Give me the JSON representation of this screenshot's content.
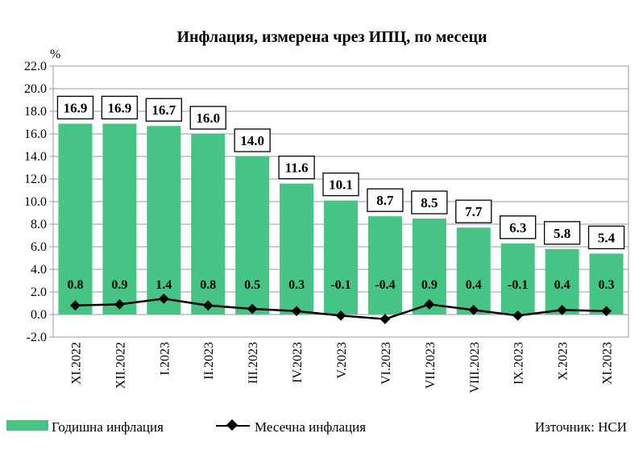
{
  "chart_data": {
    "type": "bar",
    "title": "Инфлация, измерена чрез ИПЦ, по месеци",
    "ylabel": "%",
    "ylim": [
      -2.0,
      22.0
    ],
    "yticks": [
      "22.0",
      "20.0",
      "18.0",
      "16.0",
      "14.0",
      "12.0",
      "10.0",
      "8.0",
      "6.0",
      "4.0",
      "2.0",
      "0.0",
      "-2.0"
    ],
    "categories": [
      "XI.2022",
      "XII.2022",
      "I.2023",
      "II.2023",
      "III.2023",
      "IV.2023",
      "V.2023",
      "VI.2023",
      "VII.2023",
      "VIII.2023",
      "IX.2023",
      "X.2023",
      "XI.2023"
    ],
    "series": [
      {
        "name": "Годишна инфлация",
        "type": "bar",
        "color": "#46c485",
        "values": [
          16.9,
          16.9,
          16.7,
          16.0,
          14.0,
          11.6,
          10.1,
          8.7,
          8.5,
          7.7,
          6.3,
          5.8,
          5.4
        ],
        "labels": [
          "16.9",
          "16.9",
          "16.7",
          "16.0",
          "14.0",
          "11.6",
          "10.1",
          "8.7",
          "8.5",
          "7.7",
          "6.3",
          "5.8",
          "5.4"
        ]
      },
      {
        "name": "Месечна инфлация",
        "type": "line",
        "color": "#000000",
        "values": [
          0.8,
          0.9,
          1.4,
          0.8,
          0.5,
          0.3,
          -0.1,
          -0.4,
          0.9,
          0.4,
          -0.1,
          0.4,
          0.3
        ],
        "labels": [
          "0.8",
          "0.9",
          "1.4",
          "0.8",
          "0.5",
          "0.3",
          "-0.1",
          "-0.4",
          "0.9",
          "0.4",
          "-0.1",
          "0.4",
          "0.3"
        ]
      }
    ],
    "grid": true,
    "legend": "bottom-left",
    "source": "Източник: НСИ"
  }
}
